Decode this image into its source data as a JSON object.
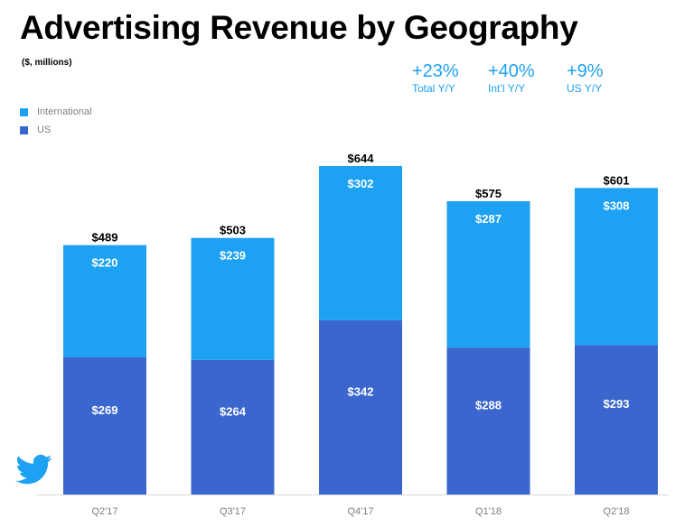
{
  "title": "Advertising Revenue by Geography",
  "subtitle": "($, millions)",
  "kpis": [
    {
      "value": "+23%",
      "label": "Total Y/Y"
    },
    {
      "value": "+40%",
      "label": "Int’l Y/Y"
    },
    {
      "value": "+9%",
      "label": "US Y/Y"
    }
  ],
  "legend": [
    {
      "label": "International",
      "color": "#1da1f2"
    },
    {
      "label": "US",
      "color": "#3a66cd"
    }
  ],
  "logo": {
    "icon": "twitter-bird-icon",
    "color": "#1da1f2"
  },
  "chart_data": {
    "type": "bar",
    "stacked": true,
    "categories": [
      "Q2'17",
      "Q3'17",
      "Q4'17",
      "Q1'18",
      "Q2'18"
    ],
    "series": [
      {
        "name": "US",
        "values": [
          269,
          264,
          342,
          288,
          293
        ],
        "color": "#3a66cd"
      },
      {
        "name": "International",
        "values": [
          220,
          239,
          302,
          287,
          308
        ],
        "color": "#1da1f2"
      }
    ],
    "totals": [
      489,
      503,
      644,
      575,
      601
    ],
    "value_labels": {
      "US": [
        "$269",
        "$264",
        "$342",
        "$288",
        "$293"
      ],
      "International": [
        "$220",
        "$239",
        "$302",
        "$287",
        "$308"
      ]
    },
    "total_labels": [
      "$489",
      "$503",
      "$644",
      "$575",
      "$601"
    ],
    "ylim": [
      0,
      644
    ],
    "grid": false,
    "legend_position": "top-left"
  }
}
